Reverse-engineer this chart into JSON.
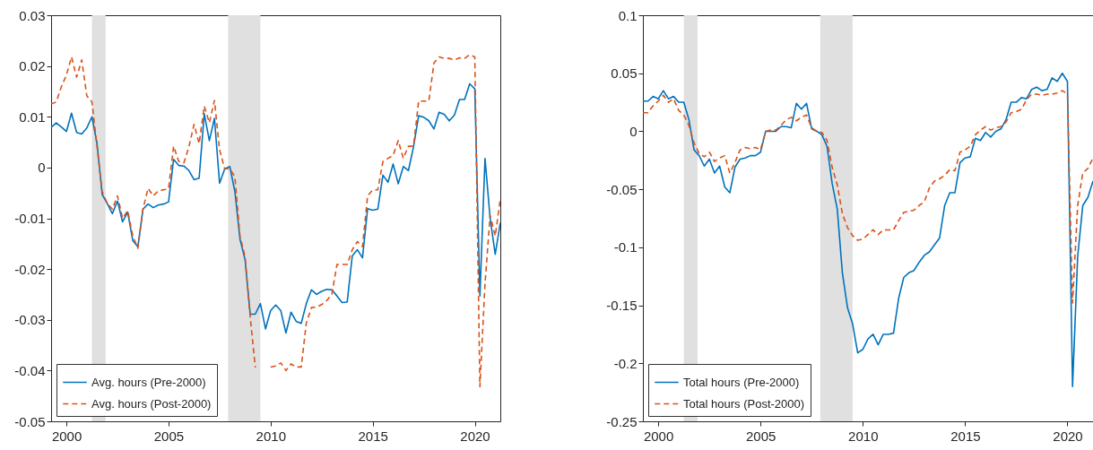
{
  "chart_data": [
    {
      "type": "line",
      "xlim": [
        1999.25,
        2021.25
      ],
      "xticks": [
        2000,
        2005,
        2010,
        2015,
        2020
      ],
      "ylim": [
        -0.05,
        0.03
      ],
      "yticks": [
        -0.05,
        -0.04,
        -0.03,
        -0.02,
        -0.01,
        0,
        0.01,
        0.02,
        0.03
      ],
      "legend": "bottom left",
      "grid": false,
      "x": [
        1999.25,
        1999.5,
        1999.75,
        2000,
        2000.25,
        2000.5,
        2000.75,
        2001,
        2001.25,
        2001.5,
        2001.75,
        2002,
        2002.25,
        2002.5,
        2002.75,
        2003,
        2003.25,
        2003.5,
        2003.75,
        2004,
        2004.25,
        2004.5,
        2004.75,
        2005,
        2005.25,
        2005.5,
        2005.75,
        2006,
        2006.25,
        2006.5,
        2006.75,
        2007,
        2007.25,
        2007.5,
        2007.75,
        2008,
        2008.25,
        2008.5,
        2008.75,
        2009,
        2009.25,
        2009.5,
        2009.75,
        2010,
        2010.25,
        2010.5,
        2010.75,
        2011,
        2011.25,
        2011.5,
        2011.75,
        2012,
        2012.25,
        2012.5,
        2012.75,
        2013,
        2013.25,
        2013.5,
        2013.75,
        2014,
        2014.25,
        2014.5,
        2014.75,
        2015,
        2015.25,
        2015.5,
        2015.75,
        2016,
        2016.25,
        2016.5,
        2016.75,
        2017,
        2017.25,
        2017.5,
        2017.75,
        2018,
        2018.25,
        2018.5,
        2018.75,
        2019,
        2019.25,
        2019.5,
        2019.75,
        2020,
        2020.25,
        2020.5,
        2020.75,
        2021,
        2021.25
      ],
      "bands": [
        {
          "axis": "x",
          "from": 2001.25,
          "to": 2001.92,
          "color": "#e0e0e0"
        },
        {
          "axis": "x",
          "from": 2007.92,
          "to": 2009.5,
          "color": "#e0e0e0"
        }
      ],
      "series": [
        {
          "name": "Avg. hours (Pre-2000)",
          "color": "#0072bd",
          "line_style": "solid",
          "values": [
            0.0079,
            0.0088,
            0.008,
            0.0071,
            0.0107,
            0.0069,
            0.0066,
            0.0078,
            0.01,
            0.0047,
            -0.0053,
            -0.0071,
            -0.0091,
            -0.0066,
            -0.0107,
            -0.0088,
            -0.0144,
            -0.0156,
            -0.0082,
            -0.0072,
            -0.0079,
            -0.0074,
            -0.0072,
            -0.0068,
            0.0016,
            0.0004,
            0.0003,
            -0.0006,
            -0.0024,
            -0.0021,
            0.0106,
            0.0053,
            0.0097,
            -0.0031,
            -0.0003,
            0.0002,
            -0.0047,
            -0.0141,
            -0.0182,
            -0.0289,
            -0.0289,
            -0.0268,
            -0.0318,
            -0.0282,
            -0.0271,
            -0.0282,
            -0.0326,
            -0.0285,
            -0.0303,
            -0.0307,
            -0.0268,
            -0.0241,
            -0.025,
            -0.0244,
            -0.024,
            -0.0241,
            -0.0253,
            -0.0266,
            -0.0265,
            -0.0174,
            -0.0162,
            -0.0178,
            -0.0081,
            -0.0084,
            -0.0082,
            -0.0015,
            -0.0029,
            0.0007,
            -0.0032,
            0.0002,
            -0.0006,
            0.0041,
            0.0102,
            0.0099,
            0.0092,
            0.0076,
            0.0109,
            0.0105,
            0.0092,
            0.0103,
            0.0134,
            0.0134,
            0.0165,
            0.0155,
            -0.0253,
            0.0018,
            -0.01,
            -0.0171,
            -0.0109
          ]
        },
        {
          "name": "Avg. hours (Post-2000)",
          "color": "#d95319",
          "line_style": "dashed",
          "values": [
            0.0125,
            0.0129,
            0.0159,
            0.0182,
            0.0218,
            0.0178,
            0.0212,
            0.0141,
            0.0129,
            0.0041,
            -0.0047,
            -0.0071,
            -0.0082,
            -0.0056,
            -0.01,
            -0.0085,
            -0.0135,
            -0.0159,
            -0.0082,
            -0.0041,
            -0.0056,
            -0.0046,
            -0.0044,
            -0.0042,
            0.0042,
            0.0012,
            0.0009,
            0.0041,
            0.0085,
            0.0047,
            0.0121,
            0.0088,
            0.0132,
            0.0035,
            -0.0002,
            -0.0003,
            -0.0018,
            -0.0135,
            -0.0176,
            -0.0294,
            -0.0394,
            null,
            null,
            -0.0393,
            -0.0391,
            -0.0385,
            -0.04,
            -0.0387,
            -0.0393,
            -0.0393,
            -0.0306,
            -0.0276,
            -0.0275,
            -0.027,
            -0.0262,
            -0.025,
            -0.0191,
            -0.0191,
            -0.0191,
            -0.0162,
            -0.0146,
            -0.0156,
            -0.0056,
            -0.0044,
            -0.0044,
            0.0012,
            0.0018,
            0.0024,
            0.0053,
            0.0018,
            0.0042,
            0.0042,
            0.0131,
            0.0131,
            0.0131,
            0.0206,
            0.0218,
            0.0215,
            0.0215,
            0.0212,
            0.0216,
            0.0215,
            0.0222,
            0.0218,
            -0.0432,
            -0.0229,
            -0.0094,
            -0.0135,
            -0.0062
          ]
        }
      ]
    },
    {
      "type": "line",
      "xlim": [
        1999.25,
        2021.25
      ],
      "xticks": [
        2000,
        2005,
        2010,
        2015,
        2020
      ],
      "ylim": [
        -0.25,
        0.1
      ],
      "yticks": [
        -0.25,
        -0.2,
        -0.15,
        -0.1,
        -0.05,
        0,
        0.05,
        0.1
      ],
      "legend": "bottom left",
      "grid": false,
      "x": [
        1999.25,
        1999.5,
        1999.75,
        2000,
        2000.25,
        2000.5,
        2000.75,
        2001,
        2001.25,
        2001.5,
        2001.75,
        2002,
        2002.25,
        2002.5,
        2002.75,
        2003,
        2003.25,
        2003.5,
        2003.75,
        2004,
        2004.25,
        2004.5,
        2004.75,
        2005,
        2005.25,
        2005.5,
        2005.75,
        2006,
        2006.25,
        2006.5,
        2006.75,
        2007,
        2007.25,
        2007.5,
        2007.75,
        2008,
        2008.25,
        2008.5,
        2008.75,
        2009,
        2009.25,
        2009.5,
        2009.75,
        2010,
        2010.25,
        2010.5,
        2010.75,
        2011,
        2011.25,
        2011.5,
        2011.75,
        2012,
        2012.25,
        2012.5,
        2012.75,
        2013,
        2013.25,
        2013.5,
        2013.75,
        2014,
        2014.25,
        2014.5,
        2014.75,
        2015,
        2015.25,
        2015.5,
        2015.75,
        2016,
        2016.25,
        2016.5,
        2016.75,
        2017,
        2017.25,
        2017.5,
        2017.75,
        2018,
        2018.25,
        2018.5,
        2018.75,
        2019,
        2019.25,
        2019.5,
        2019.75,
        2020,
        2020.25,
        2020.5,
        2020.75,
        2021,
        2021.25
      ],
      "bands": [
        {
          "axis": "x",
          "from": 2001.25,
          "to": 2001.92,
          "color": "#e0e0e0"
        },
        {
          "axis": "x",
          "from": 2007.92,
          "to": 2009.5,
          "color": "#e0e0e0"
        }
      ],
      "series": [
        {
          "name": "Total hours (Pre-2000)",
          "color": "#0072bd",
          "line_style": "solid",
          "values": [
            0.026,
            0.026,
            0.03,
            0.028,
            0.035,
            0.028,
            0.03,
            0.025,
            0.025,
            0.01,
            -0.016,
            -0.021,
            -0.03,
            -0.024,
            -0.036,
            -0.03,
            -0.048,
            -0.053,
            -0.031,
            -0.024,
            -0.023,
            -0.021,
            -0.021,
            -0.018,
            0,
            0,
            0,
            0.004,
            0.004,
            0.003,
            0.024,
            0.019,
            0.024,
            0.002,
            0,
            -0.003,
            -0.013,
            -0.045,
            -0.067,
            -0.122,
            -0.152,
            -0.166,
            -0.191,
            -0.188,
            -0.179,
            -0.175,
            -0.184,
            -0.175,
            -0.175,
            -0.174,
            -0.144,
            -0.126,
            -0.122,
            -0.12,
            -0.113,
            -0.107,
            -0.104,
            -0.098,
            -0.092,
            -0.064,
            -0.053,
            -0.053,
            -0.027,
            -0.023,
            -0.022,
            -0.006,
            -0.008,
            -0.001,
            -0.005,
            0,
            0.002,
            0.01,
            0.025,
            0.025,
            0.029,
            0.028,
            0.036,
            0.038,
            0.035,
            0.036,
            0.046,
            0.043,
            0.05,
            0.043,
            -0.22,
            -0.108,
            -0.064,
            -0.057,
            -0.043
          ]
        },
        {
          "name": "Total hours (Post-2000)",
          "color": "#d95319",
          "line_style": "dashed",
          "values": [
            0.016,
            0.016,
            0.022,
            0.026,
            0.031,
            0.025,
            0.028,
            0.018,
            0.014,
            0.005,
            -0.01,
            -0.019,
            -0.022,
            -0.018,
            -0.026,
            -0.023,
            -0.021,
            -0.036,
            -0.027,
            -0.016,
            -0.014,
            -0.015,
            -0.014,
            -0.016,
            0,
            0.001,
            0.001,
            0.005,
            0.01,
            0.012,
            0.009,
            0.012,
            0.014,
            0.003,
            0,
            -0.001,
            -0.008,
            -0.031,
            -0.046,
            -0.071,
            -0.083,
            -0.09,
            -0.094,
            -0.093,
            -0.089,
            -0.085,
            -0.089,
            -0.085,
            -0.085,
            -0.085,
            -0.077,
            -0.07,
            -0.069,
            -0.068,
            -0.064,
            -0.061,
            -0.049,
            -0.043,
            -0.041,
            -0.038,
            -0.033,
            -0.034,
            -0.018,
            -0.016,
            -0.013,
            -0.003,
            0.001,
            0.004,
            0.001,
            0.003,
            0.004,
            0.008,
            0.016,
            0.017,
            0.019,
            0.027,
            0.032,
            0.032,
            0.031,
            0.032,
            0.032,
            0.033,
            0.035,
            0.032,
            -0.148,
            -0.064,
            -0.036,
            -0.032,
            -0.023
          ]
        }
      ]
    }
  ]
}
